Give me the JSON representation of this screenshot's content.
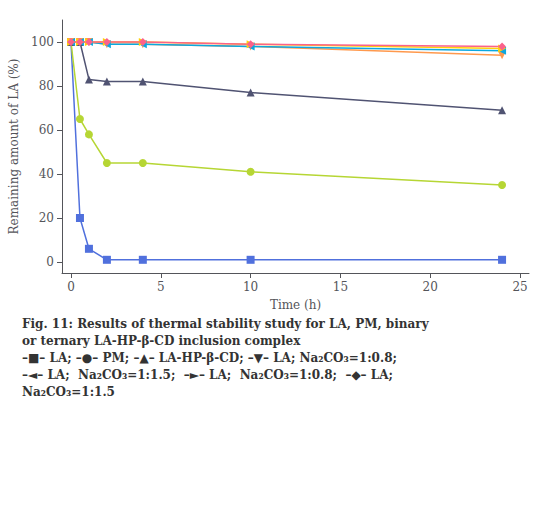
{
  "chart_data": {
    "type": "line",
    "xlabel": "Time (h)",
    "ylabel": "Remaining amount of LA (%)",
    "annotations": [
      "Fig. 11: Results of thermal stability study for LA, PM, binary",
      "or ternary LA-HP-β-CD inclusion complex",
      "–■– LA; –●– PM; –▲– LA-HP-β-CD; –▼– LA; Na₂CO₃=1:0.8;",
      "–◄– LA;  Na₂CO₃=1:1.5;  –►– LA;  Na₂CO₃=1:0.8;  –◆– LA;",
      "Na₂CO₃=1:1.5"
    ],
    "x": [
      0,
      0.5,
      1,
      2,
      4,
      10,
      24
    ],
    "xlim": [
      -0.5,
      25.5
    ],
    "ylim": [
      -5,
      110
    ],
    "xticks": [
      0,
      5,
      10,
      15,
      20,
      25
    ],
    "yticks": [
      0,
      20,
      40,
      60,
      80,
      100
    ],
    "grid": false,
    "series": [
      {
        "marker": "square",
        "values": [
          100,
          20,
          6,
          1,
          1,
          1,
          1
        ]
      },
      {
        "marker": "circle",
        "values": [
          100,
          65,
          58,
          45,
          45,
          41,
          35
        ]
      },
      {
        "marker": "triangle",
        "values": [
          100,
          100,
          83,
          82,
          82,
          77,
          69
        ]
      },
      {
        "marker": "triangle-down",
        "values": [
          100,
          100,
          100,
          99,
          99,
          98,
          94
        ]
      },
      {
        "marker": "triangle-left",
        "values": [
          100,
          100,
          100,
          99,
          99,
          98,
          96
        ]
      },
      {
        "marker": "triangle-right",
        "values": [
          100,
          100,
          100,
          100,
          100,
          99,
          97
        ]
      },
      {
        "marker": "diamond",
        "values": [
          100,
          100,
          100,
          100,
          100,
          99,
          98
        ]
      }
    ]
  }
}
